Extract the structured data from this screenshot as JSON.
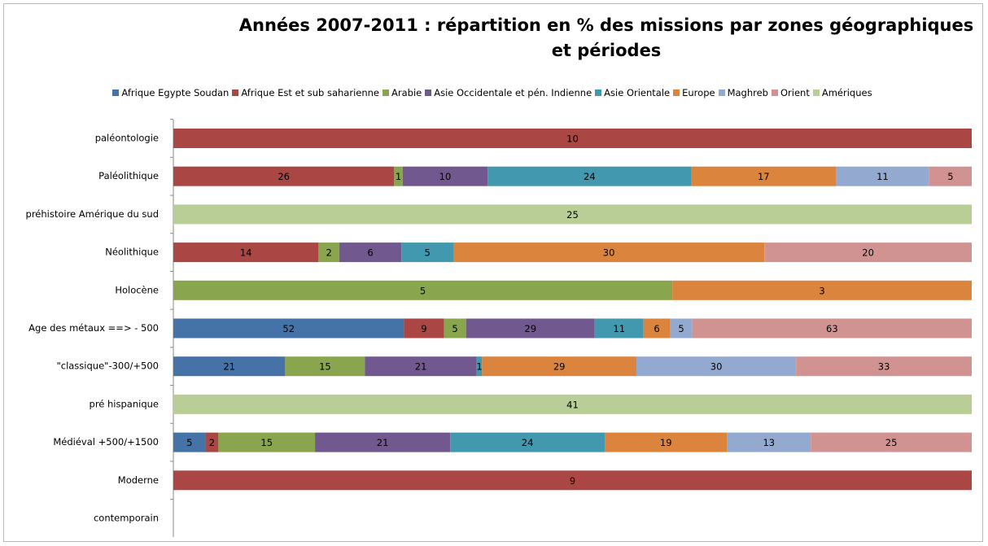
{
  "chart_data": {
    "type": "bar",
    "orientation": "horizontal",
    "stacked": "percent",
    "title": "Années 2007-2011 : répartition en % des missions par zones géographiques et périodes",
    "categories": [
      "paléontologie",
      "Paléolithique",
      "préhistoire Amérique du sud",
      "Néolithique",
      "Holocène",
      "Age des métaux ==> - 500",
      "\"classique\"-300/+500",
      "pré hispanique",
      "Médiéval +500/+1500",
      "Moderne",
      "contemporain"
    ],
    "series": [
      {
        "name": "Afrique Egypte Soudan",
        "color": "#4572a7",
        "values": [
          null,
          null,
          null,
          null,
          null,
          52,
          21,
          null,
          5,
          null,
          null
        ]
      },
      {
        "name": "Afrique Est et sub saharienne",
        "color": "#aa4643",
        "values": [
          10,
          26,
          null,
          14,
          null,
          9,
          null,
          null,
          2,
          9,
          null
        ]
      },
      {
        "name": "Arabie",
        "color": "#89a54e",
        "values": [
          null,
          1,
          null,
          2,
          5,
          5,
          15,
          null,
          15,
          null,
          null
        ]
      },
      {
        "name": "Asie Occidentale et pén. Indienne",
        "color": "#71588f",
        "values": [
          null,
          10,
          null,
          6,
          null,
          29,
          21,
          null,
          21,
          null,
          null
        ]
      },
      {
        "name": "Asie Orientale",
        "color": "#4198af",
        "values": [
          null,
          24,
          null,
          5,
          null,
          11,
          1,
          null,
          24,
          null,
          null
        ]
      },
      {
        "name": "Europe",
        "color": "#db843d",
        "values": [
          null,
          17,
          null,
          30,
          3,
          6,
          29,
          null,
          19,
          null,
          null
        ]
      },
      {
        "name": "Maghreb",
        "color": "#93a9cf",
        "values": [
          null,
          11,
          null,
          null,
          null,
          5,
          30,
          null,
          13,
          null,
          null
        ]
      },
      {
        "name": "Orient",
        "color": "#d19392",
        "values": [
          null,
          5,
          null,
          20,
          null,
          63,
          33,
          null,
          25,
          null,
          null
        ]
      },
      {
        "name": "Amériques",
        "color": "#b9cd96",
        "values": [
          null,
          null,
          25,
          null,
          null,
          null,
          null,
          41,
          null,
          null,
          null
        ]
      }
    ]
  }
}
